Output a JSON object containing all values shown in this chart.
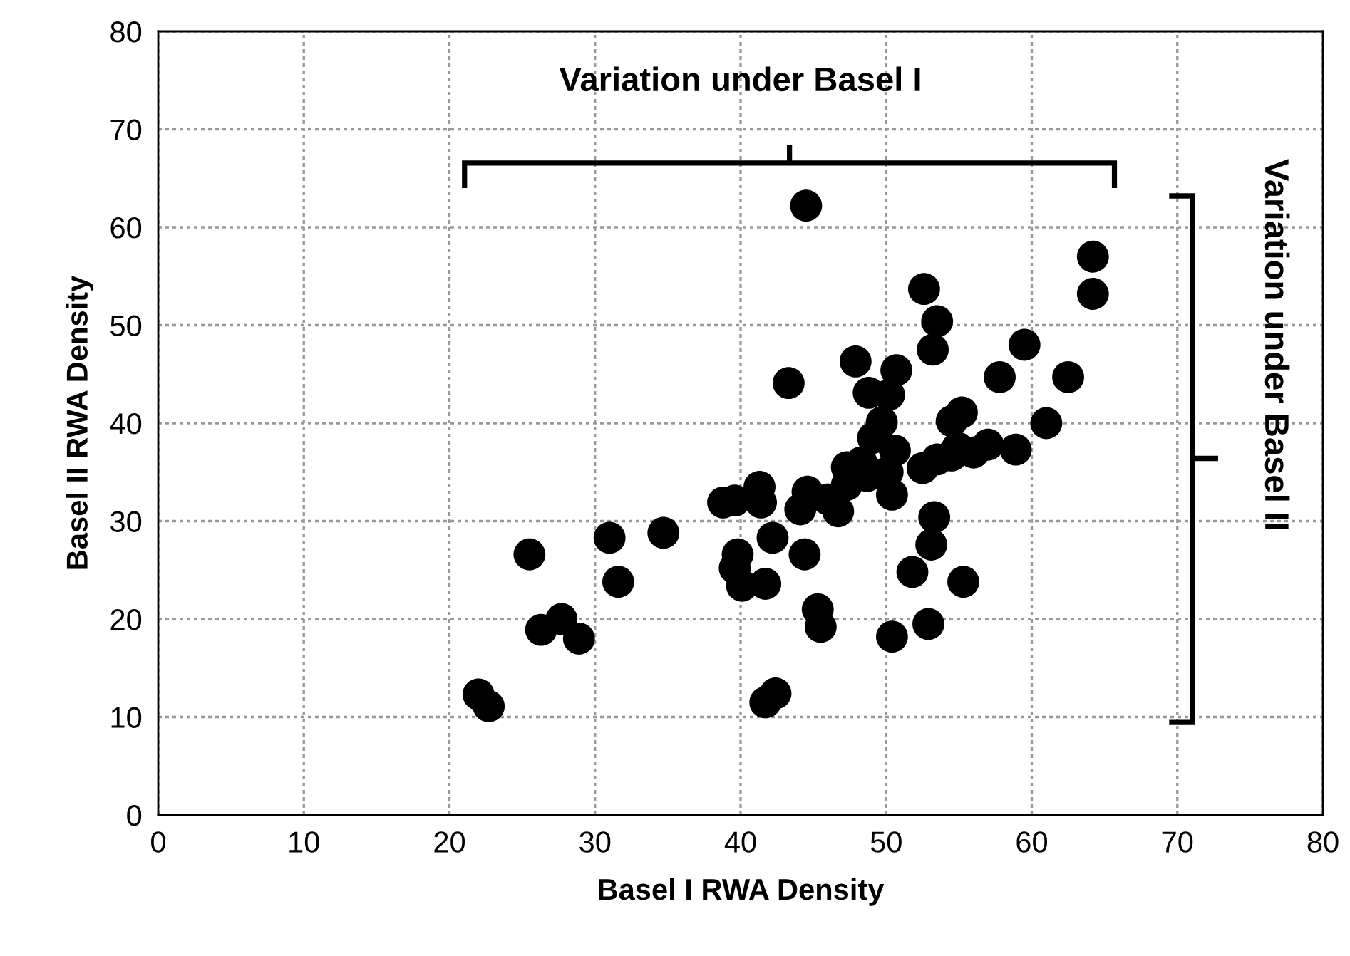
{
  "chart_data": {
    "type": "scatter",
    "xlabel": "Basel I RWA Density",
    "ylabel": "Basel II RWA Density",
    "annotations": [
      "Variation under Basel I",
      "Variation under Basel II"
    ],
    "x": [
      22,
      22.7,
      25.5,
      26.3,
      27.7,
      28.9,
      31,
      31.6,
      34.7,
      38.8,
      39.6,
      39.6,
      39.8,
      40.1,
      41.3,
      41.4,
      41.7,
      41.7,
      42.2,
      42.4,
      43.3,
      44.1,
      44.4,
      44.5,
      44.6,
      45.3,
      45.5,
      46,
      46.7,
      47.3,
      47.3,
      47.9,
      48.3,
      48.7,
      48.8,
      49.1,
      49.7,
      50.1,
      50.2,
      50.4,
      50.4,
      50.6,
      50.7,
      51.8,
      52.5,
      52.6,
      52.9,
      53.1,
      53.2,
      53.3,
      53.5,
      53.5,
      54.5,
      54.5,
      54.9,
      55.2,
      55.3,
      56,
      57,
      57.8,
      58.9,
      59.5,
      61,
      62.5,
      64.2,
      64.2
    ],
    "series": [
      {
        "color": "#000000",
        "values": [
          12.3,
          11.1,
          26.6,
          18.9,
          20,
          18,
          28.3,
          23.8,
          28.8,
          31.9,
          32.1,
          25.2,
          26.6,
          23.4,
          33.5,
          31.9,
          11.5,
          23.6,
          28.3,
          12.4,
          44.1,
          31.2,
          26.6,
          62.2,
          33,
          21,
          19.2,
          32.2,
          31,
          33.7,
          35.5,
          46.3,
          36,
          34.6,
          43.1,
          38.5,
          40.1,
          35,
          42.9,
          32.7,
          18.2,
          37.2,
          45.4,
          24.8,
          35.4,
          53.7,
          19.5,
          27.6,
          47.5,
          30.4,
          50.4,
          36.3,
          40.2,
          36.7,
          37.5,
          41.1,
          23.8,
          37,
          37.8,
          44.7,
          37.3,
          48,
          40,
          44.7,
          57,
          53.2
        ]
      }
    ],
    "xlim": [
      0,
      80
    ],
    "ylim": [
      0,
      80
    ],
    "xticks": [
      0,
      10,
      20,
      30,
      40,
      50,
      60,
      70,
      80
    ],
    "yticks": [
      0,
      10,
      20,
      30,
      40,
      50,
      60,
      70,
      80
    ],
    "grid": true,
    "marker": "circle",
    "legend": false
  }
}
